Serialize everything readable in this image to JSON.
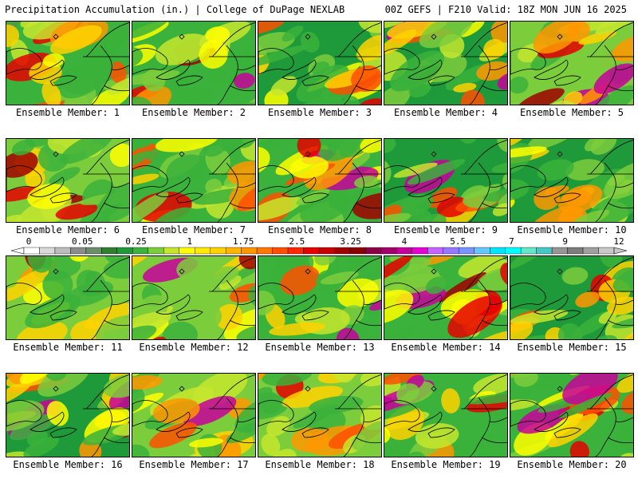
{
  "header": {
    "title_left": "Precipitation Accumulation (in.) | College of DuPage NEXLAB",
    "title_right": "00Z GEFS | F210 Valid: 18Z MON JUN 16 2025"
  },
  "colorbar": {
    "labels": [
      {
        "value": "0",
        "pos": 0
      },
      {
        "value": "0.05",
        "pos": 3
      },
      {
        "value": "0.25",
        "pos": 6
      },
      {
        "value": "1",
        "pos": 9
      },
      {
        "value": "1.75",
        "pos": 12
      },
      {
        "value": "2.5",
        "pos": 15
      },
      {
        "value": "3.25",
        "pos": 18
      },
      {
        "value": "4",
        "pos": 21
      },
      {
        "value": "5.5",
        "pos": 24
      },
      {
        "value": "7",
        "pos": 27
      },
      {
        "value": "9",
        "pos": 30
      },
      {
        "value": "12",
        "pos": 33
      }
    ],
    "colors": [
      "#ffffff",
      "#d9d9d9",
      "#bdbdbd",
      "#8c8c8c",
      "#6b8e6b",
      "#2f7f2f",
      "#1e9a3a",
      "#3bb23b",
      "#7ccd3c",
      "#c6e62e",
      "#ffff00",
      "#ffea00",
      "#ffd200",
      "#ffb400",
      "#ff9600",
      "#ff7800",
      "#ff5000",
      "#ff2800",
      "#e60000",
      "#c80000",
      "#a00000",
      "#8b0000",
      "#8b0046",
      "#a0006e",
      "#c8009b",
      "#e600d2",
      "#c864ff",
      "#9678ff",
      "#7896ff",
      "#64c8ff",
      "#00e6ff",
      "#00ffff",
      "#64e6c8",
      "#46c8c8",
      "#969696",
      "#7d7d7d",
      "#a0a0a0",
      "#c8c8c8"
    ]
  },
  "members": [
    {
      "label": "Ensemble Member: 1",
      "seed": 1
    },
    {
      "label": "Ensemble Member: 2",
      "seed": 2
    },
    {
      "label": "Ensemble Member: 3",
      "seed": 3
    },
    {
      "label": "Ensemble Member: 4",
      "seed": 4
    },
    {
      "label": "Ensemble Member: 5",
      "seed": 5
    },
    {
      "label": "Ensemble Member: 6",
      "seed": 6
    },
    {
      "label": "Ensemble Member: 7",
      "seed": 7
    },
    {
      "label": "Ensemble Member: 8",
      "seed": 8
    },
    {
      "label": "Ensemble Member: 9",
      "seed": 9
    },
    {
      "label": "Ensemble Member: 10",
      "seed": 10
    },
    {
      "label": "Ensemble Member: 11",
      "seed": 11
    },
    {
      "label": "Ensemble Member: 12",
      "seed": 12
    },
    {
      "label": "Ensemble Member: 13",
      "seed": 13
    },
    {
      "label": "Ensemble Member: 14",
      "seed": 14
    },
    {
      "label": "Ensemble Member: 15",
      "seed": 15
    },
    {
      "label": "Ensemble Member: 16",
      "seed": 16
    },
    {
      "label": "Ensemble Member: 17",
      "seed": 17
    },
    {
      "label": "Ensemble Member: 18",
      "seed": 18
    },
    {
      "label": "Ensemble Member: 19",
      "seed": 19
    },
    {
      "label": "Ensemble Member: 20",
      "seed": 20
    }
  ]
}
